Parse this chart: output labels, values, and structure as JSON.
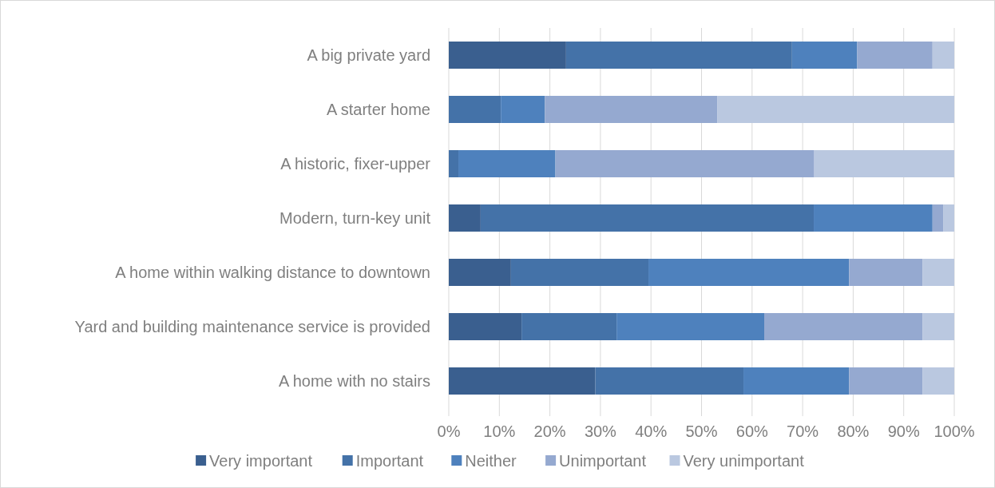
{
  "chart_data": {
    "type": "bar",
    "orientation": "horizontal",
    "stacked": true,
    "categories": [
      "A big private yard",
      "A starter home",
      "A historic, fixer-upper",
      "Modern, turn-key unit",
      "A home within walking distance to downtown",
      "Yard and building maintenance service is provided",
      "A home with no stairs"
    ],
    "series": [
      {
        "name": "Very important",
        "color": "#3a5f8f",
        "values": [
          23.2,
          0,
          0,
          6.3,
          12.3,
          14.4,
          29.0
        ]
      },
      {
        "name": "Important",
        "color": "#4472a8",
        "values": [
          44.7,
          10.3,
          1.9,
          65.9,
          27.2,
          18.8,
          29.3
        ]
      },
      {
        "name": "Neither",
        "color": "#4e81bd",
        "values": [
          12.9,
          8.7,
          19.2,
          23.5,
          39.7,
          29.2,
          20.9
        ]
      },
      {
        "name": "Unimportant",
        "color": "#95a9d0",
        "values": [
          14.9,
          34.1,
          51.2,
          2.1,
          14.5,
          31.3,
          14.5
        ]
      },
      {
        "name": "Very unimportant",
        "color": "#bac8e0",
        "values": [
          4.3,
          46.9,
          27.7,
          2.2,
          6.3,
          6.3,
          6.3
        ]
      }
    ],
    "xlim": [
      0,
      100
    ],
    "xticks": [
      {
        "value": 0,
        "label": "0%"
      },
      {
        "value": 10,
        "label": "10%"
      },
      {
        "value": 20,
        "label": "20%"
      },
      {
        "value": 30,
        "label": "30%"
      },
      {
        "value": 40,
        "label": "40%"
      },
      {
        "value": 50,
        "label": "50%"
      },
      {
        "value": 60,
        "label": "60%"
      },
      {
        "value": 70,
        "label": "70%"
      },
      {
        "value": 80,
        "label": "80%"
      },
      {
        "value": 90,
        "label": "90%"
      },
      {
        "value": 100,
        "label": "100%"
      }
    ],
    "grid": "x",
    "legend": "bottom"
  }
}
